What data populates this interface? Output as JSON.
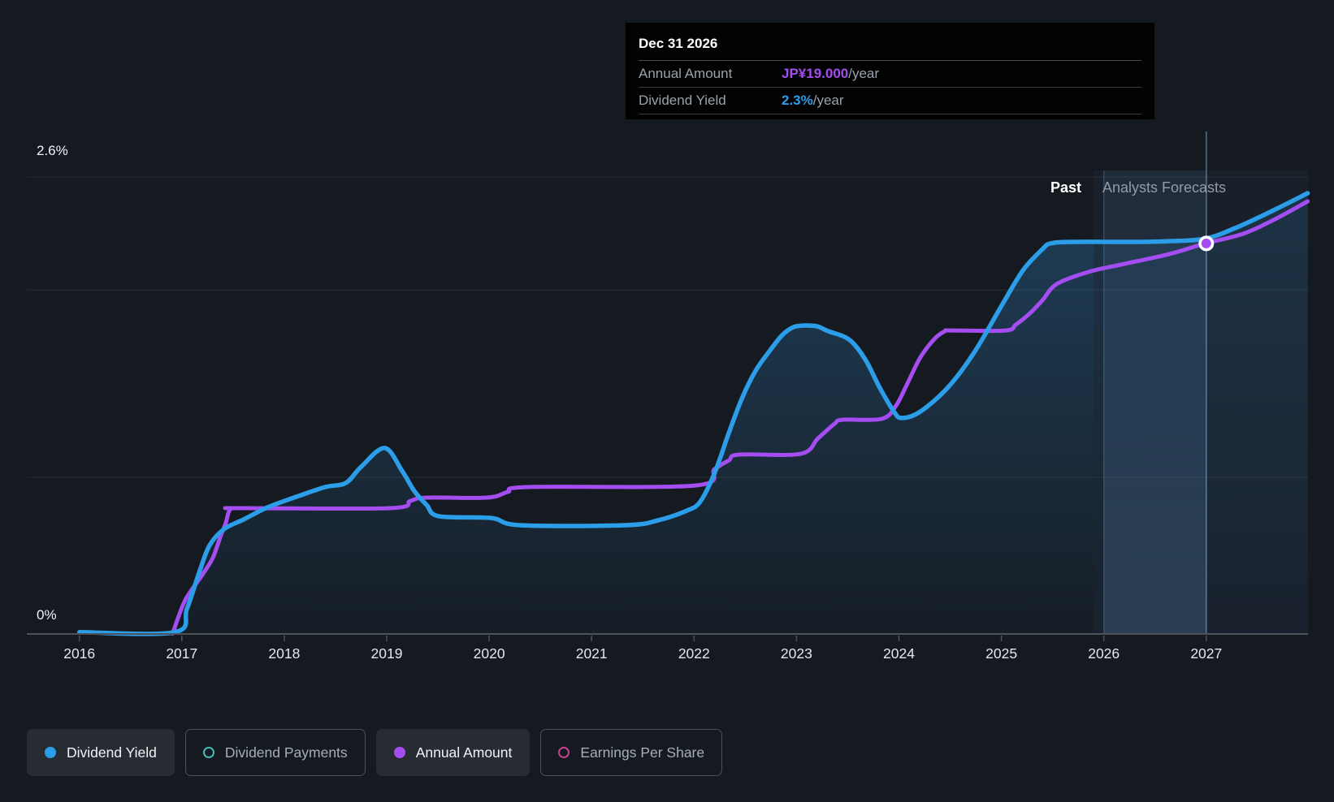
{
  "tooltip": {
    "title": "Dec 31 2026",
    "rows": [
      {
        "label": "Annual Amount",
        "value": "JP¥19.000",
        "suffix": "/year",
        "color": "#a44df0"
      },
      {
        "label": "Dividend Yield",
        "value": "2.3%",
        "suffix": "/year",
        "color": "#2c9de8"
      }
    ]
  },
  "region_labels": {
    "past": "Past",
    "forecast": "Analysts Forecasts"
  },
  "y_axis": {
    "top": "2.6%",
    "bottom": "0%"
  },
  "legend": [
    {
      "label": "Dividend Yield",
      "marker": "dot",
      "color": "#2c9de8",
      "active": true
    },
    {
      "label": "Dividend Payments",
      "marker": "ring",
      "color": "#43bdb2",
      "active": false
    },
    {
      "label": "Annual Amount",
      "marker": "dot",
      "color": "#a44df0",
      "active": true
    },
    {
      "label": "Earnings Per Share",
      "marker": "ring",
      "color": "#c63e8e",
      "active": false
    }
  ],
  "chart_data": {
    "type": "line",
    "title": "Dividend yield history and forecast",
    "x_ticks": [
      2016,
      2017,
      2018,
      2019,
      2020,
      2021,
      2022,
      2023,
      2024,
      2025,
      2026,
      2027
    ],
    "x_range": [
      2015.49,
      2027.99
    ],
    "y_range_pct": [
      0,
      2.6
    ],
    "gridlines_pct": [
      2.6,
      1.957,
      0.892
    ],
    "legend_position": "bottom",
    "regions": {
      "past_end_year": 2025.9,
      "highlight_band": [
        2026.0,
        2027.0
      ],
      "hover_year": 2027.0
    },
    "marker": {
      "year": 2027.0,
      "pct": 2.222,
      "series": "Annual Amount",
      "amount": "JP¥19.000"
    },
    "series": [
      {
        "name": "Dividend Yield",
        "color": "#2c9de8",
        "unit": "percent",
        "points": [
          [
            2016.0,
            0.01
          ],
          [
            2016.93,
            0.01
          ],
          [
            2017.05,
            0.143
          ],
          [
            2017.17,
            0.351
          ],
          [
            2017.27,
            0.503
          ],
          [
            2017.41,
            0.596
          ],
          [
            2017.6,
            0.651
          ],
          [
            2017.84,
            0.721
          ],
          [
            2018.12,
            0.781
          ],
          [
            2018.4,
            0.836
          ],
          [
            2018.6,
            0.859
          ],
          [
            2018.75,
            0.951
          ],
          [
            2018.98,
            1.058
          ],
          [
            2019.15,
            0.928
          ],
          [
            2019.27,
            0.813
          ],
          [
            2019.39,
            0.734
          ],
          [
            2019.51,
            0.67
          ],
          [
            2020.02,
            0.66
          ],
          [
            2020.3,
            0.619
          ],
          [
            2021.33,
            0.619
          ],
          [
            2021.65,
            0.647
          ],
          [
            2021.93,
            0.702
          ],
          [
            2022.06,
            0.753
          ],
          [
            2022.2,
            0.915
          ],
          [
            2022.34,
            1.145
          ],
          [
            2022.47,
            1.344
          ],
          [
            2022.6,
            1.497
          ],
          [
            2022.74,
            1.612
          ],
          [
            2022.86,
            1.7
          ],
          [
            2022.97,
            1.746
          ],
          [
            2023.08,
            1.755
          ],
          [
            2023.2,
            1.751
          ],
          [
            2023.31,
            1.723
          ],
          [
            2023.47,
            1.69
          ],
          [
            2023.57,
            1.644
          ],
          [
            2023.69,
            1.543
          ],
          [
            2023.81,
            1.404
          ],
          [
            2023.95,
            1.266
          ],
          [
            2024.03,
            1.229
          ],
          [
            2024.21,
            1.266
          ],
          [
            2024.48,
            1.404
          ],
          [
            2024.74,
            1.607
          ],
          [
            2025.0,
            1.866
          ],
          [
            2025.21,
            2.069
          ],
          [
            2025.4,
            2.189
          ],
          [
            2025.48,
            2.222
          ],
          [
            2025.69,
            2.231
          ],
          [
            2026.32,
            2.231
          ],
          [
            2026.64,
            2.235
          ],
          [
            2026.99,
            2.249
          ],
          [
            2027.28,
            2.309
          ],
          [
            2027.59,
            2.392
          ],
          [
            2027.99,
            2.508
          ]
        ]
      },
      {
        "name": "Annual Amount",
        "color": "#a44df0",
        "unit": "percent_equivalent",
        "points": [
          [
            2016.91,
            0.0
          ],
          [
            2017.03,
            0.189
          ],
          [
            2017.19,
            0.328
          ],
          [
            2017.3,
            0.43
          ],
          [
            2017.38,
            0.559
          ],
          [
            2017.43,
            0.633
          ],
          [
            2017.47,
            0.707
          ],
          [
            2017.56,
            0.716
          ],
          [
            2019.03,
            0.716
          ],
          [
            2019.23,
            0.757
          ],
          [
            2019.39,
            0.776
          ],
          [
            2019.98,
            0.776
          ],
          [
            2020.18,
            0.808
          ],
          [
            2020.38,
            0.836
          ],
          [
            2022.01,
            0.845
          ],
          [
            2022.2,
            0.938
          ],
          [
            2022.34,
            0.988
          ],
          [
            2022.44,
            1.021
          ],
          [
            2023.04,
            1.025
          ],
          [
            2023.21,
            1.113
          ],
          [
            2023.37,
            1.196
          ],
          [
            2023.45,
            1.219
          ],
          [
            2023.83,
            1.224
          ],
          [
            2023.97,
            1.298
          ],
          [
            2024.08,
            1.422
          ],
          [
            2024.21,
            1.575
          ],
          [
            2024.35,
            1.681
          ],
          [
            2024.45,
            1.723
          ],
          [
            2024.51,
            1.727
          ],
          [
            2025.04,
            1.727
          ],
          [
            2025.14,
            1.76
          ],
          [
            2025.27,
            1.82
          ],
          [
            2025.4,
            1.898
          ],
          [
            2025.54,
            1.991
          ],
          [
            2025.85,
            2.06
          ],
          [
            2026.17,
            2.102
          ],
          [
            2026.64,
            2.162
          ],
          [
            2026.99,
            2.222
          ],
          [
            2027.36,
            2.277
          ],
          [
            2027.67,
            2.36
          ],
          [
            2027.99,
            2.462
          ]
        ]
      }
    ]
  }
}
